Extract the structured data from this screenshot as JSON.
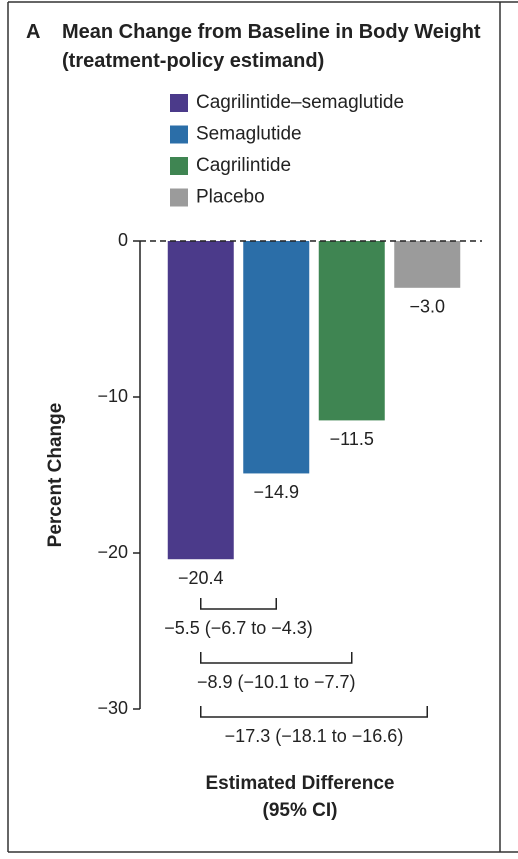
{
  "chart_data": {
    "type": "bar",
    "panel": "A",
    "title": "Mean Change from Baseline in Body Weight (treatment-policy estimand)",
    "ylabel": "Percent Change",
    "categories": [
      "Cagrilintide–semaglutide",
      "Semaglutide",
      "Cagrilintide",
      "Placebo"
    ],
    "series": [
      {
        "name": "Percent Change",
        "values": [
          -20.4,
          -14.9,
          -11.5,
          -3.0
        ],
        "value_labels": [
          "−20.4",
          "−14.9",
          "−11.5",
          "−3.0"
        ],
        "colors": [
          "#4b3a8a",
          "#2b6ea8",
          "#3f8552",
          "#9b9b9b"
        ]
      }
    ],
    "ylim": [
      -30,
      0
    ],
    "yticks": [
      0,
      {
        "value": -10,
        "label": "−10"
      },
      {
        "value": -20,
        "label": "−20"
      },
      {
        "value": -30,
        "label": "−30"
      }
    ],
    "zero_line": "dashed",
    "comparisons": [
      "−5.5 (−6.7 to −4.3)",
      "−8.9 (−10.1 to −7.7)",
      "−17.3 (−18.1 to −16.6)"
    ],
    "difference_title": [
      "Estimated Difference",
      "(95% CI)"
    ]
  }
}
